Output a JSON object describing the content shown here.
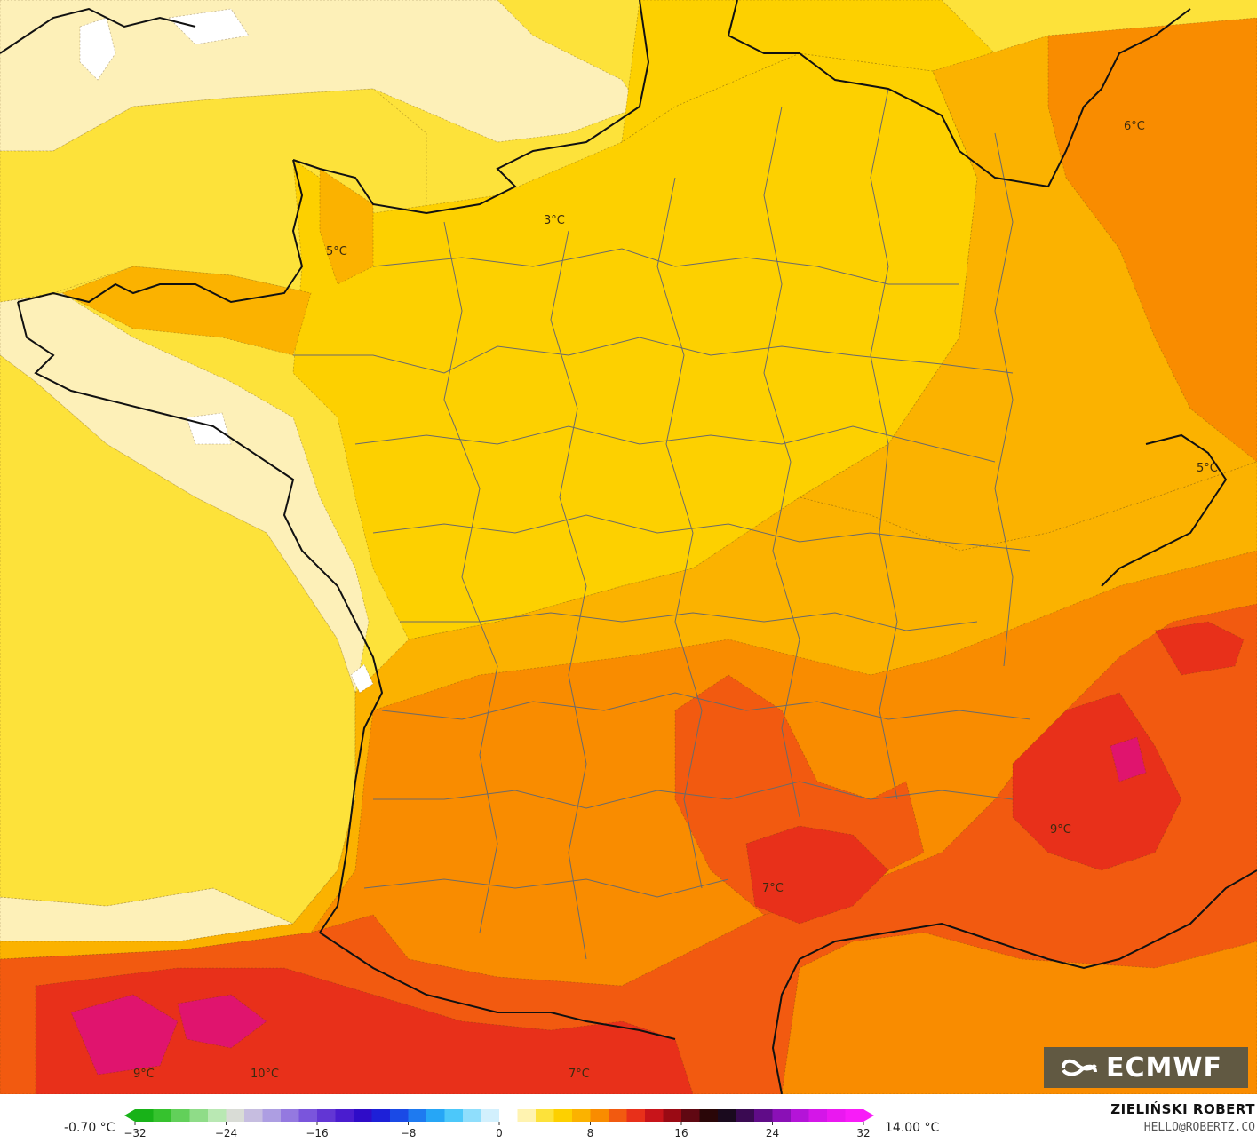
{
  "map": {
    "palette": {
      "ocean_pale": "#fdf0b8",
      "ocean_yellow": "#fde23a",
      "land_yellow": "#fdd000",
      "land_amber": "#fbb200",
      "land_orange": "#f98c00",
      "land_deep": "#f25a10",
      "land_red": "#e8301a",
      "land_crimson": "#d40f3c",
      "land_magenta": "#e0146e",
      "snow": "#ffffff"
    },
    "temperature_labels": [
      {
        "id": "t-6",
        "text": "6°C"
      },
      {
        "id": "t-3",
        "text": "3°C"
      },
      {
        "id": "t-5a",
        "text": "5°C"
      },
      {
        "id": "t-5b",
        "text": "5°C"
      },
      {
        "id": "t-9a",
        "text": "9°C"
      },
      {
        "id": "t-7a",
        "text": "7°C"
      },
      {
        "id": "t-9b",
        "text": "9°C"
      },
      {
        "id": "t-10",
        "text": "10°C"
      },
      {
        "id": "t-7b",
        "text": "7°C"
      }
    ]
  },
  "logo": {
    "text": "ECMWF"
  },
  "colorbar": {
    "min_label": "-0.70 °C",
    "max_label": "14.00 °C",
    "ticks": [
      "−32",
      "−24",
      "−16",
      "−8",
      "0",
      "8",
      "16",
      "24",
      "32"
    ],
    "colors": [
      "#18b218",
      "#36c22e",
      "#62d05a",
      "#8fdc88",
      "#b9e8b3",
      "#d9dcd6",
      "#c6bde0",
      "#ad9ee2",
      "#9479e0",
      "#7a55dc",
      "#6236d4",
      "#4a1ccf",
      "#2f0cc8",
      "#1d20d8",
      "#1a4ae6",
      "#1e7af0",
      "#26a6f6",
      "#4cc8fa",
      "#8fdefc",
      "#d2f0fd",
      "#ffffff",
      "#fff3b0",
      "#fde23a",
      "#fdd000",
      "#fbb200",
      "#f98c00",
      "#f25a10",
      "#e8301a",
      "#c8141a",
      "#9a0a14",
      "#600812",
      "#2a0608",
      "#1a0a1e",
      "#3a0a52",
      "#600c88",
      "#8a10b6",
      "#b414d8",
      "#d416e8",
      "#ea18f0",
      "#f81cf8"
    ]
  },
  "credit": {
    "name": "ZIELIŃSKI ROBERT",
    "email": "HELLO@ROBERTZ.CO"
  }
}
